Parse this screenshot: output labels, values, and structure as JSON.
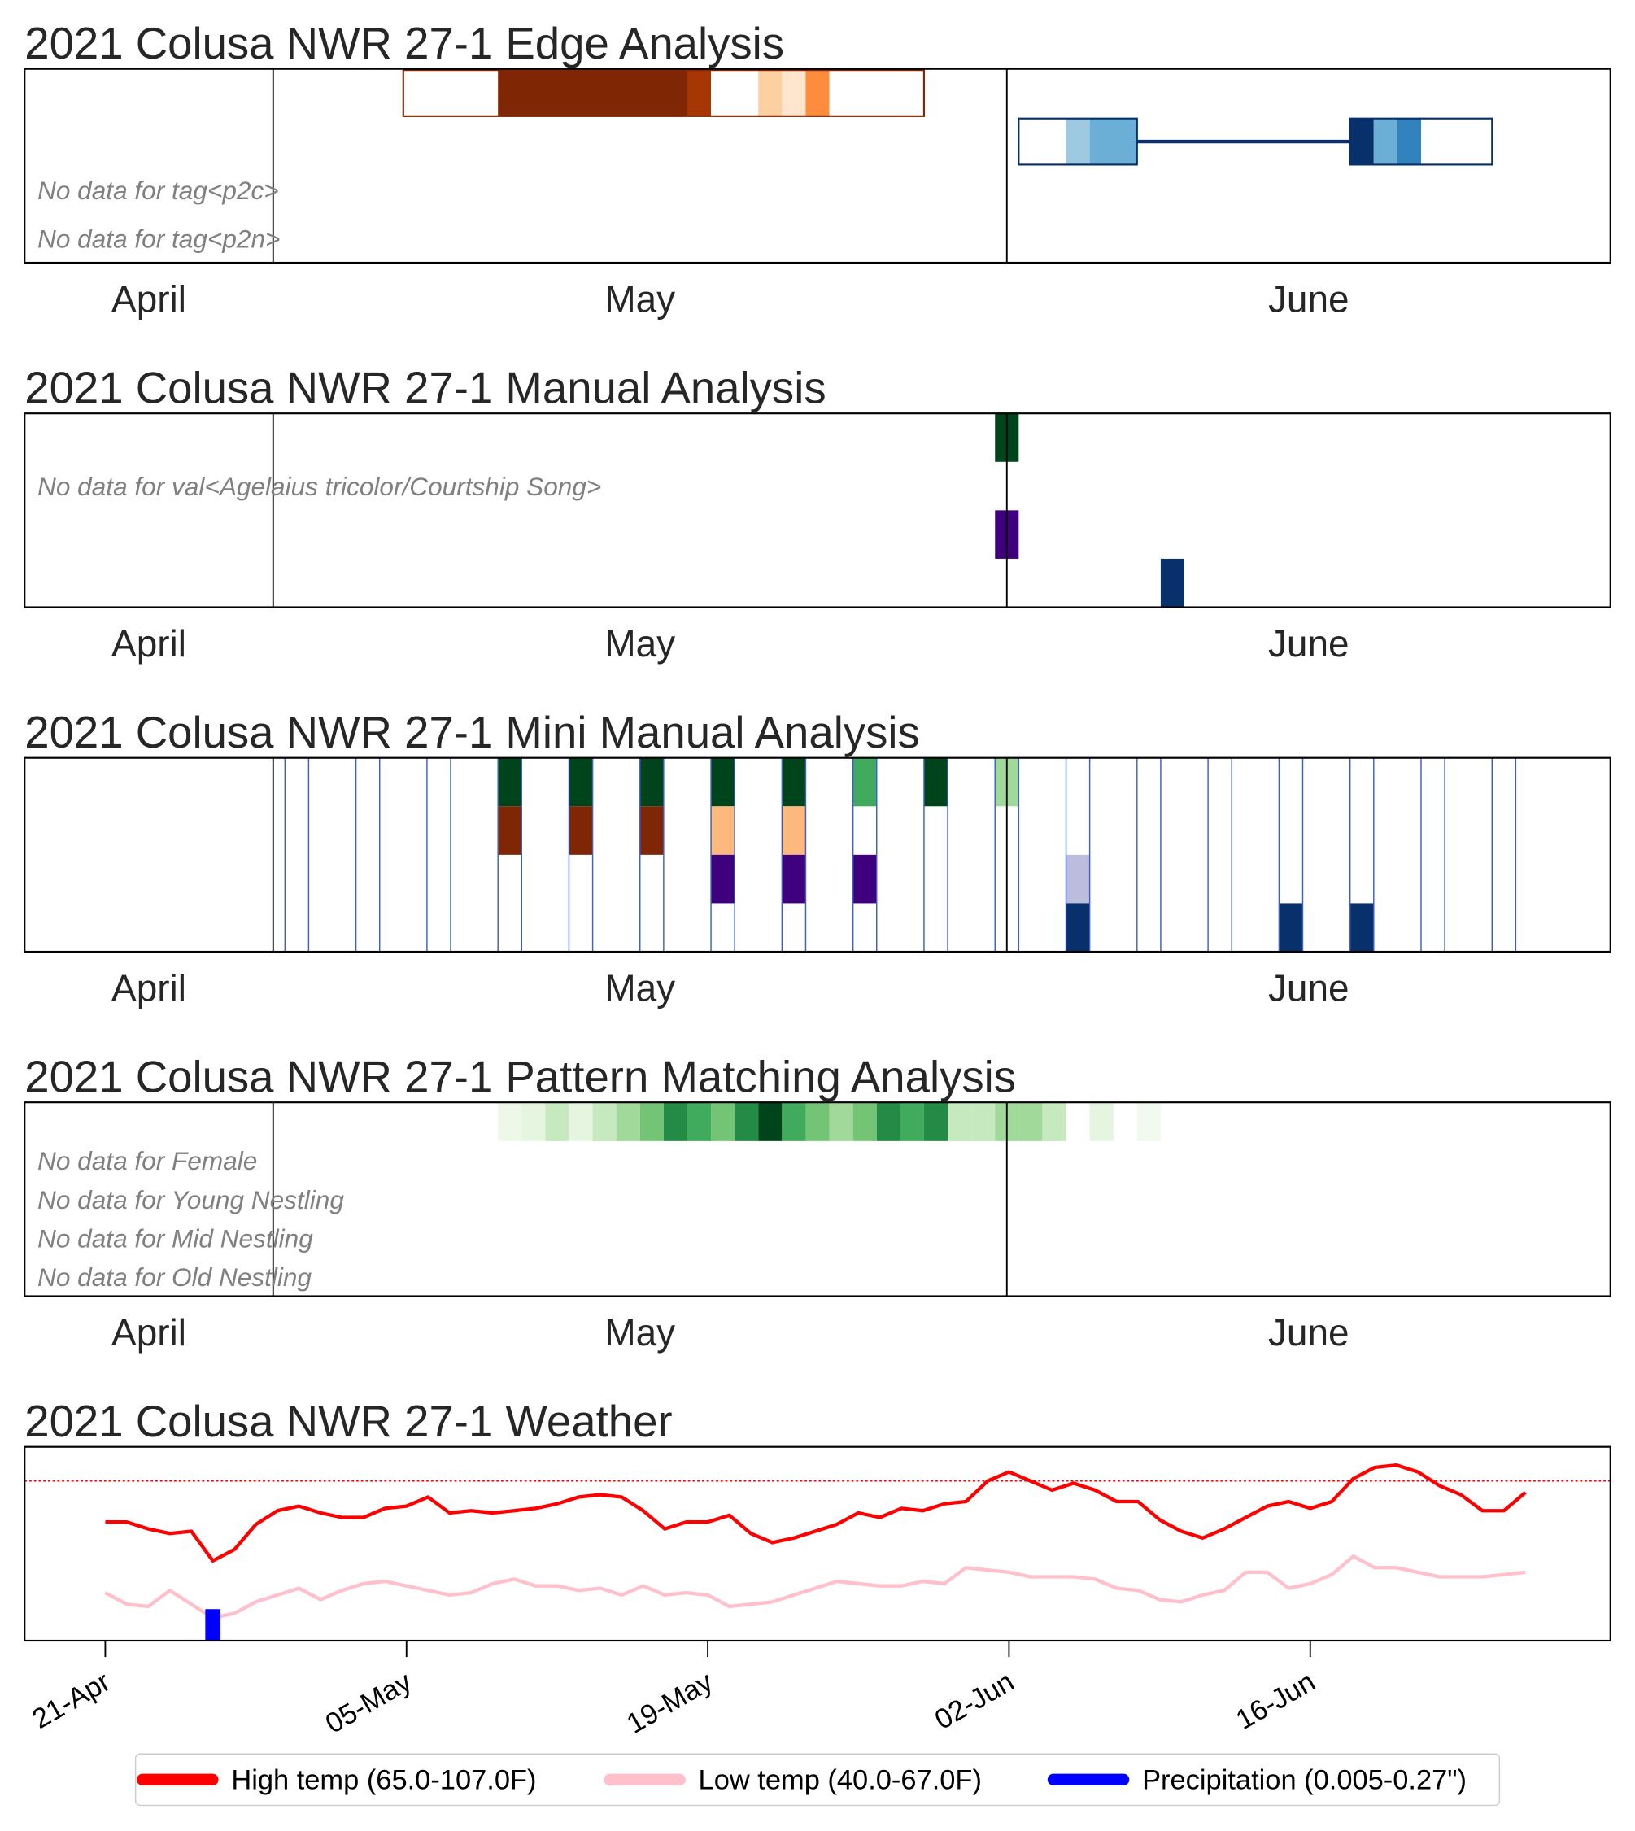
{
  "chart_data": [
    {
      "type": "timeline",
      "title": "2021 Colusa NWR 27-1 Edge Analysis",
      "xlim": [
        -10.5,
        56.5
      ],
      "xticks": [
        {
          "value": -5.25,
          "label": "April"
        },
        {
          "value": 15.5,
          "label": "May"
        },
        {
          "value": 43.75,
          "label": "June"
        }
      ],
      "vlines": [
        0,
        31
      ],
      "row_count": 4,
      "annotations": [
        {
          "row": 2,
          "text": "No data for tag<p2c>"
        },
        {
          "row": 3,
          "text": "No data for tag<p2n>"
        }
      ],
      "rows": [
        {
          "row": 0,
          "outline": "#7f2704",
          "segments": [
            {
              "from": 5.5,
              "to": 9.5,
              "color": "#ffffff"
            },
            {
              "from": 9.5,
              "to": 17.5,
              "color": "#7f2704"
            },
            {
              "from": 17.5,
              "to": 18.5,
              "color": "#a63603"
            },
            {
              "from": 18.5,
              "to": 20.5,
              "color": "#ffffff"
            },
            {
              "from": 20.5,
              "to": 21.5,
              "color": "#fdd0a2"
            },
            {
              "from": 21.5,
              "to": 22.5,
              "color": "#fee6ce"
            },
            {
              "from": 22.5,
              "to": 23.5,
              "color": "#fd8d3c"
            },
            {
              "from": 23.5,
              "to": 27.5,
              "color": "#ffffff"
            }
          ]
        },
        {
          "row": 1,
          "outline": "#08306b",
          "segments": [
            {
              "from": 31.5,
              "to": 33.5,
              "color": "#ffffff"
            },
            {
              "from": 33.5,
              "to": 34.5,
              "color": "#9ecae1"
            },
            {
              "from": 34.5,
              "to": 36.5,
              "color": "#6baed6"
            },
            {
              "from": 36.5,
              "to": 45.5,
              "color": "#08306b",
              "style": "line"
            },
            {
              "from": 45.5,
              "to": 46.5,
              "color": "#08306b"
            },
            {
              "from": 46.5,
              "to": 47.5,
              "color": "#6baed6"
            },
            {
              "from": 47.5,
              "to": 48.5,
              "color": "#3182bd"
            },
            {
              "from": 48.5,
              "to": 51.5,
              "color": "#ffffff"
            }
          ]
        }
      ]
    },
    {
      "type": "timeline",
      "title": "2021 Colusa NWR 27-1 Manual Analysis",
      "xlim": [
        -10.5,
        56.5
      ],
      "xticks": [
        {
          "value": -5.25,
          "label": "April"
        },
        {
          "value": 15.5,
          "label": "May"
        },
        {
          "value": 43.75,
          "label": "June"
        }
      ],
      "vlines": [
        0,
        31
      ],
      "row_count": 4,
      "annotations": [
        {
          "row": 1,
          "text": "No data for val<Agelaius tricolor/Courtship Song>"
        }
      ],
      "cells": [
        {
          "row": 0,
          "x": 31,
          "color": "#00441b"
        },
        {
          "row": 2,
          "x": 31,
          "color": "#3f007d"
        },
        {
          "row": 3,
          "x": 38,
          "color": "#08306b"
        }
      ]
    },
    {
      "type": "timeline",
      "title": "2021 Colusa NWR 27-1 Mini Manual Analysis",
      "xlim": [
        -10.5,
        56.5
      ],
      "xticks": [
        {
          "value": -5.25,
          "label": "April"
        },
        {
          "value": 15.5,
          "label": "May"
        },
        {
          "value": 43.75,
          "label": "June"
        }
      ],
      "vlines": [
        0,
        31
      ],
      "row_count": 4,
      "columns": {
        "color": "#3a5fcd",
        "x": [
          1,
          4,
          7,
          10,
          13,
          16,
          19,
          22,
          25,
          28,
          31,
          34,
          37,
          40,
          43,
          46,
          49,
          52
        ]
      },
      "cells": [
        {
          "row": 0,
          "x": 10,
          "color": "#00441b"
        },
        {
          "row": 0,
          "x": 13,
          "color": "#00441b"
        },
        {
          "row": 0,
          "x": 16,
          "color": "#00441b"
        },
        {
          "row": 0,
          "x": 19,
          "color": "#00441b"
        },
        {
          "row": 0,
          "x": 22,
          "color": "#00441b"
        },
        {
          "row": 0,
          "x": 25,
          "color": "#41ab5d"
        },
        {
          "row": 0,
          "x": 28,
          "color": "#00441b"
        },
        {
          "row": 0,
          "x": 31,
          "color": "#a1d99b"
        },
        {
          "row": 1,
          "x": 10,
          "color": "#7f2704"
        },
        {
          "row": 1,
          "x": 13,
          "color": "#7f2704"
        },
        {
          "row": 1,
          "x": 16,
          "color": "#7f2704"
        },
        {
          "row": 1,
          "x": 19,
          "color": "#fdb97d"
        },
        {
          "row": 1,
          "x": 22,
          "color": "#fdb97d"
        },
        {
          "row": 2,
          "x": 19,
          "color": "#3f007d"
        },
        {
          "row": 2,
          "x": 22,
          "color": "#3f007d"
        },
        {
          "row": 2,
          "x": 25,
          "color": "#3f007d"
        },
        {
          "row": 2,
          "x": 34,
          "color": "#bcbddc"
        },
        {
          "row": 3,
          "x": 34,
          "color": "#08306b"
        },
        {
          "row": 3,
          "x": 43,
          "color": "#08306b"
        },
        {
          "row": 3,
          "x": 46,
          "color": "#08306b"
        }
      ]
    },
    {
      "type": "timeline",
      "title": "2021 Colusa NWR 27-1 Pattern Matching Analysis",
      "xlim": [
        -10.5,
        56.5
      ],
      "xticks": [
        {
          "value": -5.25,
          "label": "April"
        },
        {
          "value": 15.5,
          "label": "May"
        },
        {
          "value": 43.75,
          "label": "June"
        }
      ],
      "vlines": [
        0,
        31
      ],
      "row_count": 5,
      "annotations": [
        {
          "row": 1,
          "text": "No data for Female"
        },
        {
          "row": 2,
          "text": "No data for Young Nestling"
        },
        {
          "row": 3,
          "text": "No data for Mid Nestling"
        },
        {
          "row": 4,
          "text": "No data for Old Nestling"
        }
      ],
      "cells": [
        {
          "row": 0,
          "x": 10,
          "color": "#edf8e9"
        },
        {
          "row": 0,
          "x": 11,
          "color": "#e5f5e0"
        },
        {
          "row": 0,
          "x": 12,
          "color": "#c7e9c0"
        },
        {
          "row": 0,
          "x": 13,
          "color": "#e5f5e0"
        },
        {
          "row": 0,
          "x": 14,
          "color": "#c7e9c0"
        },
        {
          "row": 0,
          "x": 15,
          "color": "#a1d99b"
        },
        {
          "row": 0,
          "x": 16,
          "color": "#74c476"
        },
        {
          "row": 0,
          "x": 17,
          "color": "#238b45"
        },
        {
          "row": 0,
          "x": 18,
          "color": "#41ab5d"
        },
        {
          "row": 0,
          "x": 19,
          "color": "#74c476"
        },
        {
          "row": 0,
          "x": 20,
          "color": "#238b45"
        },
        {
          "row": 0,
          "x": 21,
          "color": "#00441b"
        },
        {
          "row": 0,
          "x": 22,
          "color": "#41ab5d"
        },
        {
          "row": 0,
          "x": 23,
          "color": "#74c476"
        },
        {
          "row": 0,
          "x": 24,
          "color": "#a1d99b"
        },
        {
          "row": 0,
          "x": 25,
          "color": "#74c476"
        },
        {
          "row": 0,
          "x": 26,
          "color": "#238b45"
        },
        {
          "row": 0,
          "x": 27,
          "color": "#41ab5d"
        },
        {
          "row": 0,
          "x": 28,
          "color": "#238b45"
        },
        {
          "row": 0,
          "x": 29,
          "color": "#c7e9c0"
        },
        {
          "row": 0,
          "x": 30,
          "color": "#c7e9c0"
        },
        {
          "row": 0,
          "x": 31,
          "color": "#a1d99b"
        },
        {
          "row": 0,
          "x": 32,
          "color": "#a1d99b"
        },
        {
          "row": 0,
          "x": 33,
          "color": "#c7e9c0"
        },
        {
          "row": 0,
          "x": 35,
          "color": "#e5f5e0"
        },
        {
          "row": 0,
          "x": 37,
          "color": "#f2faef"
        }
      ]
    },
    {
      "type": "line",
      "title": "2021 Colusa NWR 27-1 Weather",
      "xlim": [
        -3.75,
        69.95
      ],
      "ylim": [
        30,
        115
      ],
      "y2lim": [
        0,
        1.66
      ],
      "xticks": [
        {
          "value": 0,
          "label": "21-Apr"
        },
        {
          "value": 14,
          "label": "05-May"
        },
        {
          "value": 28,
          "label": "19-May"
        },
        {
          "value": 42,
          "label": "02-Jun"
        },
        {
          "value": 56,
          "label": "16-Jun"
        }
      ],
      "hline": {
        "value": 100,
        "color": "#ff0000"
      },
      "x": [
        0,
        1,
        2,
        3,
        4,
        5,
        6,
        7,
        8,
        9,
        10,
        11,
        12,
        13,
        14,
        15,
        16,
        17,
        18,
        19,
        20,
        21,
        22,
        23,
        24,
        25,
        26,
        27,
        28,
        29,
        30,
        31,
        32,
        33,
        34,
        35,
        36,
        37,
        38,
        39,
        40,
        41,
        42,
        43,
        44,
        45,
        46,
        47,
        48,
        49,
        50,
        51,
        52,
        53,
        54,
        55,
        56,
        57,
        58,
        59,
        60,
        61,
        62,
        63,
        64,
        65,
        66
      ],
      "series": [
        {
          "name": "High temp (65.0-107.0F)",
          "color": "#ff0000",
          "values": [
            82,
            82,
            79,
            77,
            78,
            65,
            70,
            81,
            87,
            89,
            86,
            84,
            84,
            88,
            89,
            93,
            86,
            87,
            86,
            87,
            88,
            90,
            93,
            94,
            93,
            87,
            79,
            82,
            82,
            85,
            77,
            73,
            75,
            78,
            81,
            86,
            84,
            88,
            87,
            90,
            91,
            100,
            104,
            100,
            96,
            99,
            96,
            91,
            91,
            83,
            78,
            75,
            79,
            84,
            89,
            91,
            88,
            91,
            101,
            106,
            107,
            104,
            98,
            94,
            87,
            87,
            95
          ]
        },
        {
          "name": "Low temp (40.0-67.0F)",
          "color": "#ffc0cb",
          "values": [
            51,
            46,
            45,
            52,
            46,
            40,
            42,
            47,
            50,
            53,
            48,
            52,
            55,
            56,
            54,
            52,
            50,
            51,
            55,
            57,
            54,
            54,
            52,
            53,
            50,
            54,
            50,
            51,
            50,
            45,
            46,
            47,
            50,
            53,
            56,
            55,
            54,
            54,
            56,
            55,
            62,
            61,
            60,
            58,
            58,
            58,
            57,
            53,
            52,
            48,
            47,
            50,
            52,
            60,
            60,
            53,
            55,
            59,
            67,
            62,
            62,
            60,
            58,
            58,
            58,
            59,
            60
          ]
        },
        {
          "name": "Precipitation (0.005-0.27\")",
          "color": "#0000ff",
          "type": "bar",
          "axis": "y2",
          "x": [
            5
          ],
          "values": [
            0.27
          ]
        }
      ]
    }
  ]
}
